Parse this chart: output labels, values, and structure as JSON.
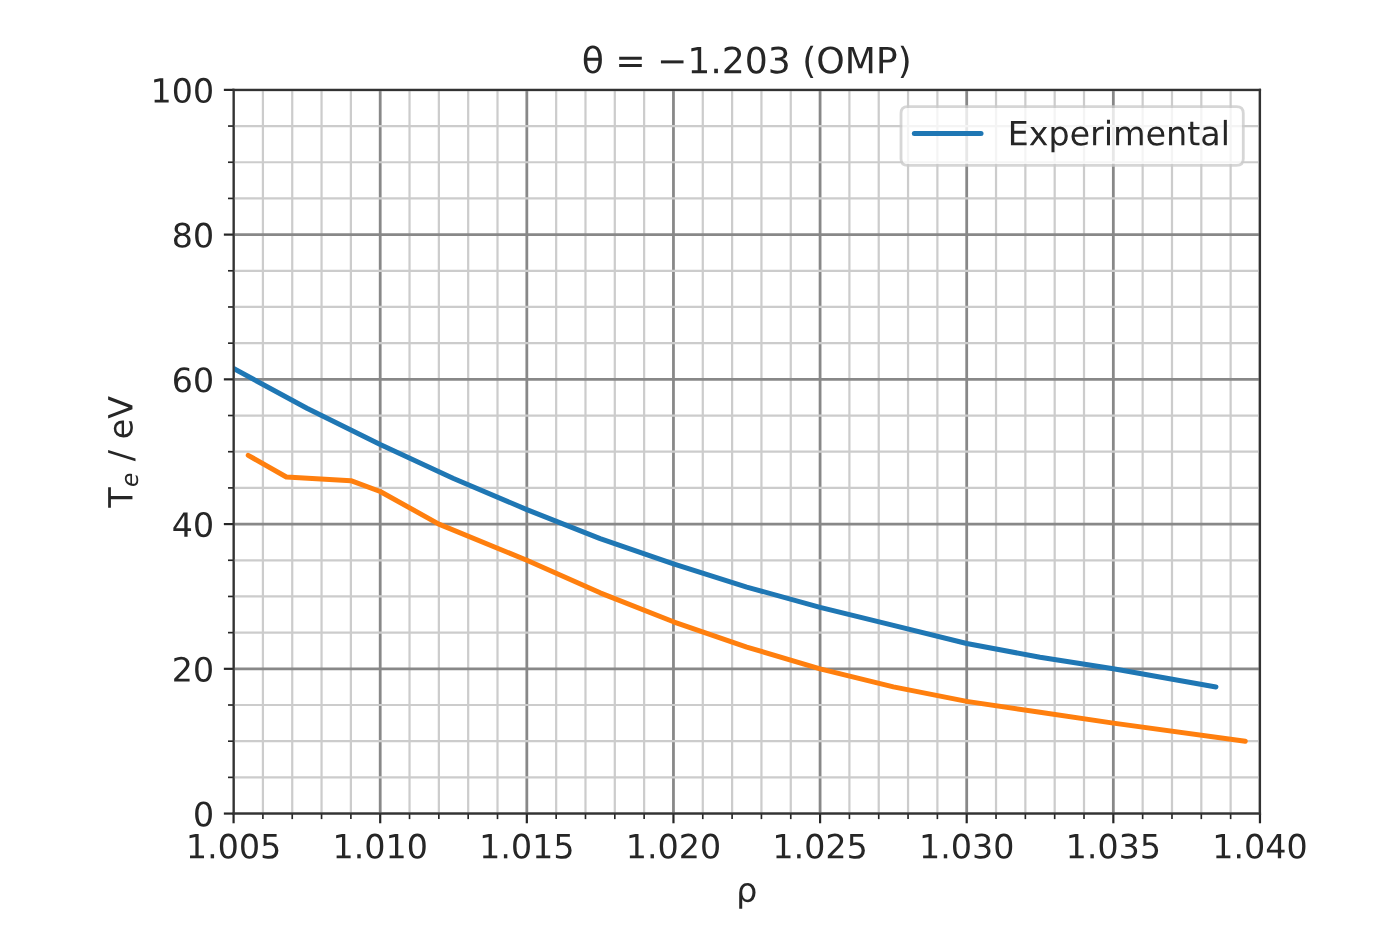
{
  "chart_data": {
    "type": "line",
    "title": "θ = −1.203 (OMP)",
    "xlabel": "ρ",
    "ylabel": "T$_{e}$ / eV",
    "xlim": [
      1.005,
      1.04
    ],
    "xticks": [
      {
        "value": 1.005,
        "label": "1.005"
      },
      {
        "value": 1.01,
        "label": "1.010"
      },
      {
        "value": 1.015,
        "label": "1.015"
      },
      {
        "value": 1.02,
        "label": "1.020"
      },
      {
        "value": 1.025,
        "label": "1.025"
      },
      {
        "value": 1.03,
        "label": "1.030"
      },
      {
        "value": 1.035,
        "label": "1.035"
      },
      {
        "value": 1.04,
        "label": "1.040"
      }
    ],
    "ylim": [
      0,
      100
    ],
    "yticks": [
      0,
      20,
      40,
      60,
      80,
      100
    ],
    "grid": true,
    "legend": "top right",
    "series": [
      {
        "name": "Experimental",
        "color": "#1f77b4",
        "x": [
          1.005,
          1.0075,
          1.01,
          1.0125,
          1.015,
          1.0175,
          1.02,
          1.0225,
          1.025,
          1.0275,
          1.03,
          1.0325,
          1.035,
          1.0385
        ],
        "values": [
          61.5,
          56,
          51,
          46.3,
          42,
          38,
          34.5,
          31.3,
          28.5,
          26,
          23.5,
          21.6,
          20,
          17.5
        ]
      },
      {
        "color": "#ff7f0e",
        "x": [
          1.0055,
          1.0068,
          1.009,
          1.01,
          1.012,
          1.015,
          1.0175,
          1.02,
          1.0225,
          1.025,
          1.0275,
          1.03,
          1.0325,
          1.035,
          1.0395
        ],
        "values": [
          49.5,
          46.5,
          46,
          44.5,
          40,
          35,
          30.5,
          26.5,
          23,
          20,
          17.5,
          15.5,
          14,
          12.5,
          10
        ]
      }
    ]
  }
}
